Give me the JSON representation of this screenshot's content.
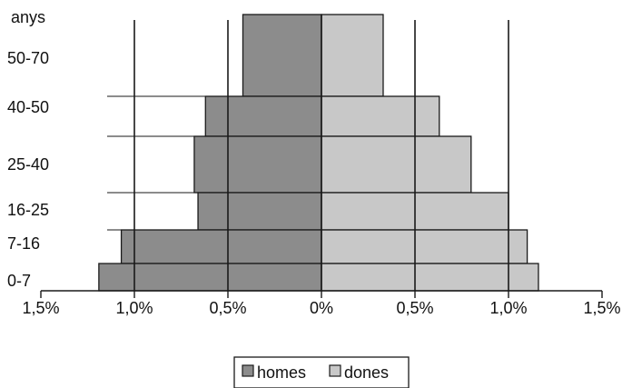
{
  "chart_data": {
    "type": "bar",
    "orientation": "horizontal-diverging",
    "y_title": "anys",
    "categories": [
      "50-70",
      "40-50",
      "25-40",
      "16-25",
      "7-16",
      "0-7"
    ],
    "series": [
      {
        "name": "homes",
        "values": [
          0.42,
          0.62,
          0.68,
          0.66,
          1.07,
          1.19
        ],
        "color": "#8c8c8c"
      },
      {
        "name": "dones",
        "values": [
          0.33,
          0.63,
          0.8,
          1.0,
          1.1,
          1.16
        ],
        "color": "#c8c8c8"
      }
    ],
    "x_ticks": [
      "1,5%",
      "1,0%",
      "0,5%",
      "0%",
      "0,5%",
      "1,0%",
      "1,5%"
    ],
    "xlim": [
      -1.5,
      1.5
    ],
    "gridlines_at": [
      -1.0,
      -0.5,
      0.5,
      1.0
    ],
    "legend_position": "bottom-center"
  }
}
